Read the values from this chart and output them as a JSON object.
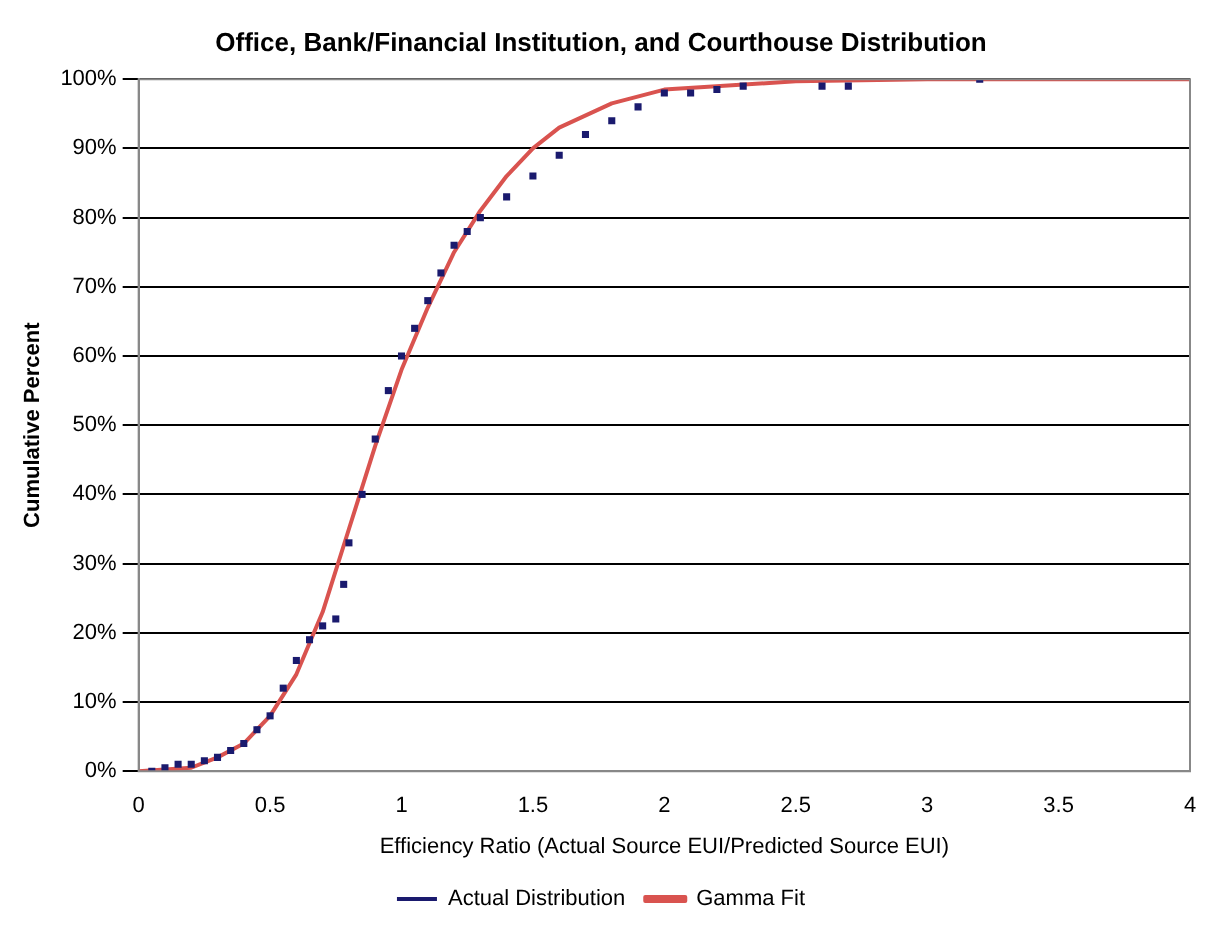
{
  "chart_data": {
    "type": "scatter",
    "title": "Office, Bank/Financial Institution, and Courthouse Distribution",
    "xlabel": "Efficiency Ratio (Actual Source EUI/Predicted Source EUI)",
    "ylabel": "Cumulative Percent",
    "xlim": [
      0,
      4
    ],
    "xticks": [
      0,
      0.5,
      1,
      1.5,
      2,
      2.5,
      3,
      3.5,
      4
    ],
    "ylim": [
      0,
      100
    ],
    "yticks": [
      {
        "value": 0,
        "label": "0%"
      },
      {
        "value": 10,
        "label": "10%"
      },
      {
        "value": 20,
        "label": "20%"
      },
      {
        "value": 30,
        "label": "30%"
      },
      {
        "value": 40,
        "label": "40%"
      },
      {
        "value": 50,
        "label": "50%"
      },
      {
        "value": 60,
        "label": "60%"
      },
      {
        "value": 70,
        "label": "70%"
      },
      {
        "value": 80,
        "label": "80%"
      },
      {
        "value": 90,
        "label": "90%"
      },
      {
        "value": 100,
        "label": "100%"
      }
    ],
    "grid": "y",
    "legend": "bottom",
    "marker": "square",
    "series": [
      {
        "name": "Actual Distribution",
        "color": "#1a1a6e",
        "x": [
          0.05,
          0.1,
          0.15,
          0.2,
          0.25,
          0.3,
          0.35,
          0.4,
          0.45,
          0.5,
          0.55,
          0.6,
          0.65,
          0.7,
          0.75,
          0.78,
          0.8,
          0.85,
          0.9,
          0.95,
          1.0,
          1.05,
          1.1,
          1.15,
          1.2,
          1.25,
          1.3,
          1.4,
          1.5,
          1.6,
          1.7,
          1.8,
          1.9,
          2.0,
          2.1,
          2.2,
          2.3,
          2.6,
          2.7,
          3.2
        ],
        "values": [
          0,
          0.5,
          1,
          1,
          1.5,
          2,
          3,
          4,
          6,
          8,
          12,
          16,
          19,
          21,
          22,
          27,
          33,
          40,
          48,
          55,
          60,
          64,
          68,
          72,
          76,
          78,
          80,
          83,
          86,
          89,
          92,
          94,
          96,
          98,
          98,
          98.5,
          99,
          99,
          99,
          100
        ]
      },
      {
        "name": "Gamma Fit",
        "type": "line",
        "color": "#d9534f",
        "marker": "none",
        "x": [
          0,
          0.2,
          0.3,
          0.4,
          0.5,
          0.6,
          0.7,
          0.8,
          0.9,
          1.0,
          1.1,
          1.2,
          1.3,
          1.4,
          1.5,
          1.6,
          1.8,
          2.0,
          2.5,
          3,
          3.5,
          4
        ],
        "values": [
          0,
          0.5,
          2,
          4,
          8,
          14,
          23,
          35,
          47,
          58,
          67,
          75,
          81,
          86,
          90,
          93,
          96.5,
          98.5,
          99.7,
          100,
          100,
          100
        ]
      }
    ]
  }
}
